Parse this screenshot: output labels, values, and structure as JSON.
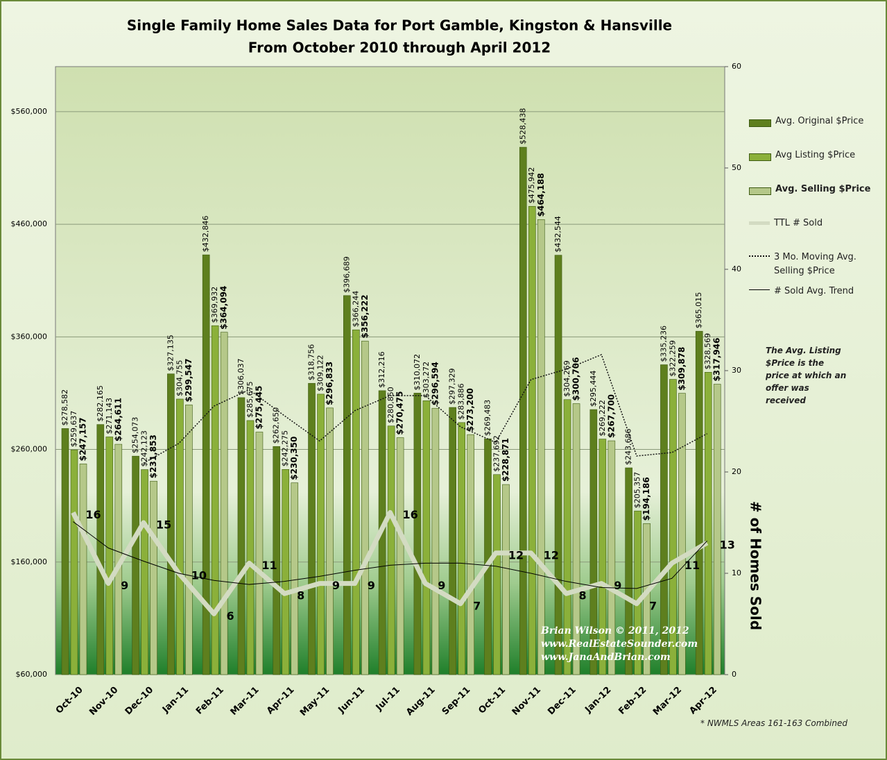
{
  "chart_data": {
    "type": "bar",
    "title": [
      "Single Family Home Sales Data for Port Gamble, Kingston & Hansville",
      "From October 2010 through April 2012"
    ],
    "y2_label": "# of Homes Sold",
    "annotation": "The Avg. Listing $Price is the price at which an offer was received",
    "watermark": [
      "Brian Wilson  © 2011, 2012",
      "www.RealEstateSounder.com",
      "www.JanaAndBrian.com"
    ],
    "footnote": "* NWMLS Areas 161-163 Combined",
    "categories": [
      "Oct-10",
      "Nov-10",
      "Dec-10",
      "Jan-11",
      "Feb-11",
      "Mar-11",
      "Apr-11",
      "May-11",
      "Jun-11",
      "Jul-11",
      "Aug-11",
      "Sep-11",
      "Oct-11",
      "Nov-11",
      "Dec-11",
      "Jan-12",
      "Feb-12",
      "Mar-12",
      "Apr-12"
    ],
    "ylim": [
      60000,
      600000
    ],
    "yticks": [
      {
        "value": 60000,
        "label": "$60,000"
      },
      {
        "value": 160000,
        "label": "$160,000"
      },
      {
        "value": 260000,
        "label": "$260,000"
      },
      {
        "value": 360000,
        "label": "$360,000"
      },
      {
        "value": 460000,
        "label": "$460,000"
      },
      {
        "value": 560000,
        "label": "$560,000"
      }
    ],
    "y2lim": [
      0,
      60
    ],
    "y2ticks": [
      0,
      10,
      20,
      30,
      40,
      50,
      60
    ],
    "grid": true,
    "legend": "right",
    "series": [
      {
        "name": "Avg. Original $Price",
        "type": "bar",
        "color": "#5e7f1e",
        "values": [
          278582,
          282165,
          254073,
          327135,
          432846,
          306037,
          262650,
          318756,
          396689,
          312216,
          310072,
          297329,
          269483,
          528438,
          432544,
          295444,
          243686,
          335236,
          365015
        ],
        "value_labels": [
          "$278,582",
          "$282,165",
          "$254,073",
          "$327,135",
          "$432,846",
          "$306,037",
          "$262,650",
          "$318,756",
          "$396,689",
          "$312,216",
          "$310,072",
          "$297,329",
          "$269,483",
          "$528,438",
          "$432,544",
          "$295,444",
          "$243,686",
          "$335,236",
          "$365,015"
        ]
      },
      {
        "name": "Avg Listing $Price",
        "type": "bar",
        "color": "#8bb03a",
        "values": [
          259637,
          271143,
          242123,
          304755,
          369932,
          285675,
          242275,
          309122,
          366244,
          280850,
          303272,
          283886,
          237692,
          475942,
          304269,
          269222,
          205357,
          322259,
          328569
        ],
        "value_labels": [
          "$259,637",
          "$271,143",
          "$242,123",
          "$304,755",
          "$369,932",
          "$285,675",
          "$242,275",
          "$309,122",
          "$366,244",
          "$280,850",
          "$303,272",
          "$283,886",
          "$237,692",
          "$475,942",
          "$304,269",
          "$269,222",
          "$205,357",
          "$322,259",
          "$328,569"
        ]
      },
      {
        "name": "Avg. Selling $Price",
        "type": "bar",
        "color": "#b5c889",
        "values": [
          247157,
          264611,
          231853,
          299547,
          364094,
          275445,
          230350,
          296833,
          356222,
          270475,
          296594,
          273200,
          228871,
          464188,
          300706,
          267700,
          194186,
          309878,
          317946
        ],
        "value_labels": [
          "$247,157",
          "$264,611",
          "$231,853",
          "$299,547",
          "$364,094",
          "$275,445",
          "$230,350",
          "$296,833",
          "$356,222",
          "$270,475",
          "$296,594",
          "$273,200",
          "$228,871",
          "$464,188",
          "$300,706",
          "$267,700",
          "$194,186",
          "$309,878",
          "$317,946"
        ]
      },
      {
        "name": "TTL # Sold",
        "type": "line",
        "axis": "y2",
        "color": "#d3dbc2",
        "values": [
          16,
          9,
          15,
          10,
          6,
          11,
          8,
          9,
          9,
          16,
          9,
          7,
          12,
          12,
          8,
          9,
          7,
          11,
          13
        ]
      },
      {
        "name": "3 Mo. Moving Avg. Selling $Price",
        "type": "dotted",
        "color": "#111111",
        "values": [
          null,
          null,
          247874,
          265337,
          298498,
          313029,
          289963,
          267543,
          294468,
          307843,
          307764,
          280090,
          266222,
          322086,
          331255,
          344198,
          254197,
          257255,
          274003
        ]
      },
      {
        "name": "# Sold Avg. Trend",
        "type": "thin",
        "axis": "y2",
        "color": "#000000",
        "values": [
          15.1,
          12.5,
          11.2,
          10,
          9.3,
          8.9,
          9.2,
          9.7,
          10.3,
          10.8,
          11,
          11,
          10.7,
          10,
          9.2,
          8.6,
          8.5,
          9.5,
          13.2
        ]
      }
    ]
  }
}
